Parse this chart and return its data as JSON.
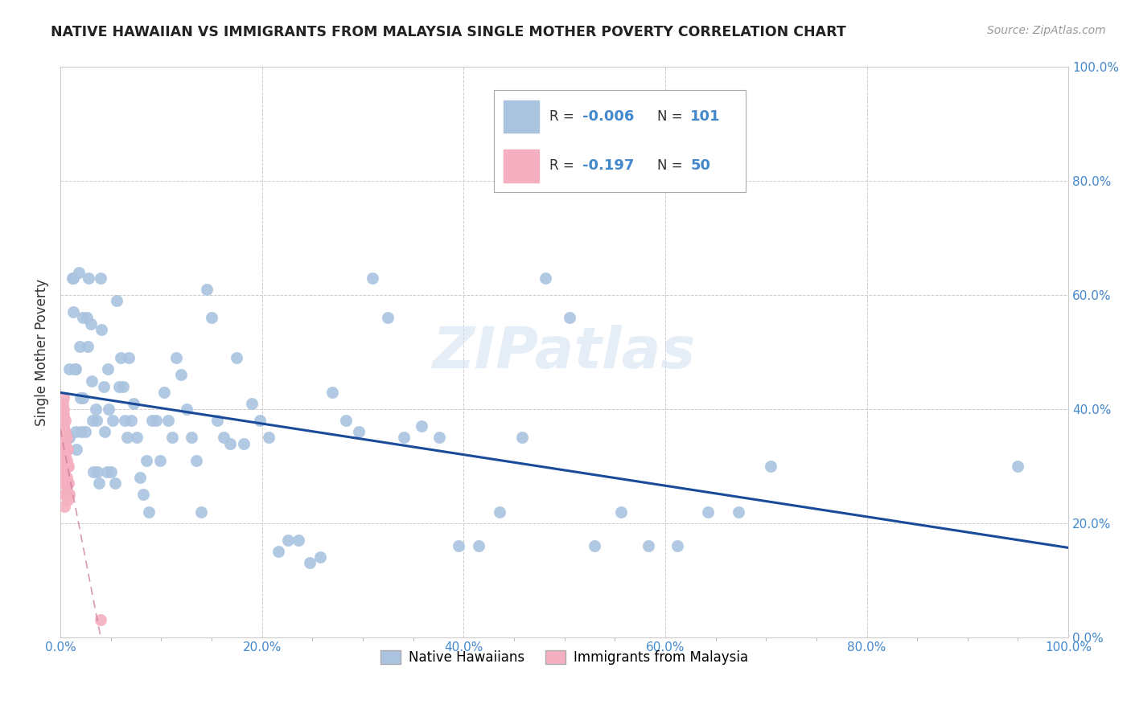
{
  "title": "NATIVE HAWAIIAN VS IMMIGRANTS FROM MALAYSIA SINGLE MOTHER POVERTY CORRELATION CHART",
  "source": "Source: ZipAtlas.com",
  "ylabel_label": "Single Mother Poverty",
  "watermark": "ZIPatlas",
  "blue_color": "#aac4e0",
  "pink_color": "#f4b0c0",
  "blue_line_color": "#1a4a9a",
  "pink_line_color": "#cc7799",
  "legend_blue_R": "-0.006",
  "legend_blue_N": "101",
  "legend_pink_R": "-0.197",
  "legend_pink_N": "50",
  "blue_scatter_x": [
    0.008,
    0.009,
    0.009,
    0.012,
    0.013,
    0.013,
    0.014,
    0.015,
    0.015,
    0.016,
    0.018,
    0.019,
    0.02,
    0.021,
    0.022,
    0.022,
    0.025,
    0.026,
    0.027,
    0.028,
    0.03,
    0.031,
    0.032,
    0.033,
    0.035,
    0.036,
    0.037,
    0.038,
    0.04,
    0.041,
    0.043,
    0.044,
    0.046,
    0.047,
    0.048,
    0.05,
    0.052,
    0.054,
    0.056,
    0.058,
    0.06,
    0.062,
    0.064,
    0.066,
    0.068,
    0.07,
    0.073,
    0.076,
    0.079,
    0.082,
    0.085,
    0.088,
    0.091,
    0.095,
    0.099,
    0.103,
    0.107,
    0.111,
    0.115,
    0.12,
    0.125,
    0.13,
    0.135,
    0.14,
    0.145,
    0.15,
    0.156,
    0.162,
    0.168,
    0.175,
    0.182,
    0.19,
    0.198,
    0.207,
    0.216,
    0.226,
    0.236,
    0.247,
    0.258,
    0.27,
    0.283,
    0.296,
    0.31,
    0.325,
    0.341,
    0.358,
    0.376,
    0.395,
    0.415,
    0.436,
    0.458,
    0.481,
    0.505,
    0.53,
    0.556,
    0.583,
    0.612,
    0.642,
    0.673,
    0.705,
    0.95
  ],
  "blue_scatter_y": [
    0.35,
    0.35,
    0.47,
    0.63,
    0.63,
    0.57,
    0.47,
    0.47,
    0.36,
    0.33,
    0.64,
    0.51,
    0.42,
    0.36,
    0.56,
    0.42,
    0.36,
    0.56,
    0.51,
    0.63,
    0.55,
    0.45,
    0.38,
    0.29,
    0.4,
    0.38,
    0.29,
    0.27,
    0.63,
    0.54,
    0.44,
    0.36,
    0.29,
    0.47,
    0.4,
    0.29,
    0.38,
    0.27,
    0.59,
    0.44,
    0.49,
    0.44,
    0.38,
    0.35,
    0.49,
    0.38,
    0.41,
    0.35,
    0.28,
    0.25,
    0.31,
    0.22,
    0.38,
    0.38,
    0.31,
    0.43,
    0.38,
    0.35,
    0.49,
    0.46,
    0.4,
    0.35,
    0.31,
    0.22,
    0.61,
    0.56,
    0.38,
    0.35,
    0.34,
    0.49,
    0.34,
    0.41,
    0.38,
    0.35,
    0.15,
    0.17,
    0.17,
    0.13,
    0.14,
    0.43,
    0.38,
    0.36,
    0.63,
    0.56,
    0.35,
    0.37,
    0.35,
    0.16,
    0.16,
    0.22,
    0.35,
    0.63,
    0.56,
    0.16,
    0.22,
    0.16,
    0.16,
    0.22,
    0.22,
    0.3,
    0.3
  ],
  "pink_scatter_x": [
    0.001,
    0.001,
    0.001,
    0.002,
    0.002,
    0.002,
    0.002,
    0.002,
    0.002,
    0.002,
    0.003,
    0.003,
    0.003,
    0.003,
    0.003,
    0.003,
    0.003,
    0.003,
    0.003,
    0.003,
    0.003,
    0.004,
    0.004,
    0.004,
    0.004,
    0.004,
    0.004,
    0.004,
    0.004,
    0.004,
    0.005,
    0.005,
    0.005,
    0.005,
    0.005,
    0.005,
    0.005,
    0.006,
    0.006,
    0.006,
    0.006,
    0.006,
    0.007,
    0.007,
    0.007,
    0.007,
    0.008,
    0.008,
    0.009,
    0.04
  ],
  "pink_scatter_y": [
    0.38,
    0.37,
    0.36,
    0.41,
    0.4,
    0.39,
    0.38,
    0.36,
    0.35,
    0.33,
    0.42,
    0.4,
    0.39,
    0.37,
    0.36,
    0.35,
    0.33,
    0.32,
    0.3,
    0.28,
    0.27,
    0.38,
    0.36,
    0.35,
    0.33,
    0.31,
    0.29,
    0.27,
    0.25,
    0.23,
    0.38,
    0.36,
    0.34,
    0.32,
    0.3,
    0.27,
    0.25,
    0.35,
    0.33,
    0.31,
    0.28,
    0.25,
    0.33,
    0.3,
    0.27,
    0.24,
    0.3,
    0.27,
    0.25,
    0.03
  ],
  "xlim": [
    0.0,
    1.0
  ],
  "ylim": [
    0.0,
    1.0
  ],
  "xticks": [
    0.0,
    0.2,
    0.4,
    0.6,
    0.8,
    1.0
  ],
  "yticks": [
    0.0,
    0.2,
    0.4,
    0.6,
    0.8,
    1.0
  ],
  "background_color": "#ffffff",
  "grid_color": "#cccccc",
  "tick_color": "#4488cc",
  "label_color": "#333333"
}
